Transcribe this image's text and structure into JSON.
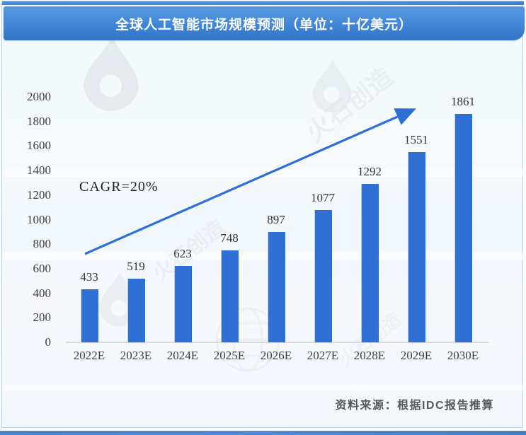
{
  "page": {
    "title": "全球人工智能市场规模预测（单位：十亿美元）",
    "source_note": "资料来源：根据IDC报告推算",
    "watermark_text": "火石创造"
  },
  "colors": {
    "bar_blue": "#2F6FD3",
    "arrow_blue": "#2E6FD6",
    "banner_blue_light": "#5798DF",
    "banner_blue_dark": "#3173C6",
    "axis_line": "#D9D9D9",
    "tick_text": "#3F3F3F",
    "value_text": "#333333",
    "source_text": "#595959"
  },
  "chart_data": {
    "type": "bar",
    "title": "全球人工智能市场规模预测（单位：十亿美元）",
    "categories": [
      "2022E",
      "2023E",
      "2024E",
      "2025E",
      "2026E",
      "2027E",
      "2028E",
      "2029E",
      "2030E"
    ],
    "values": [
      433,
      519,
      623,
      748,
      897,
      1077,
      1292,
      1551,
      1861
    ],
    "xlabel": "",
    "ylabel": "",
    "ylim": [
      0,
      2000
    ],
    "ytick_step": 200,
    "grid": false,
    "legend": false,
    "annotation": "CAGR=20%",
    "annotation_arrow": "blue upward trend arrow from first bar toward last bar"
  }
}
